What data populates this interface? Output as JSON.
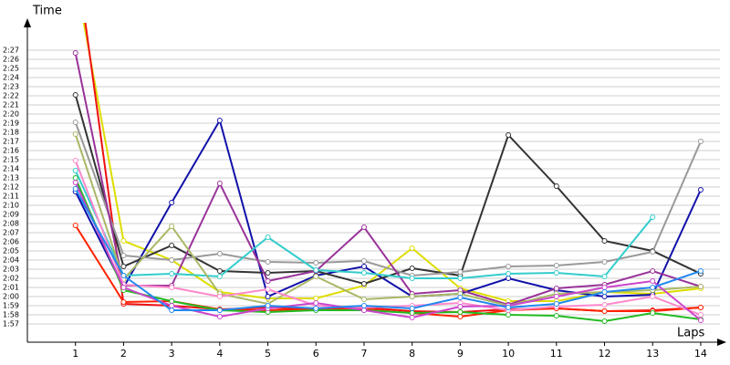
{
  "chart_data": {
    "type": "line",
    "ylabel": "Time",
    "xlabel": "Laps",
    "x": [
      1,
      2,
      3,
      4,
      5,
      6,
      7,
      8,
      9,
      10,
      11,
      12,
      13,
      14
    ],
    "xlim": [
      0,
      14.4
    ],
    "xticks": [
      1,
      2,
      3,
      4,
      5,
      6,
      7,
      8,
      9,
      10,
      11,
      12,
      13,
      14
    ],
    "ylim": [
      115,
      150
    ],
    "yticks": [
      {
        "value": 117,
        "label": "1:57"
      },
      {
        "value": 118,
        "label": "1:58"
      },
      {
        "value": 119,
        "label": "1:59"
      },
      {
        "value": 120,
        "label": "2:00"
      },
      {
        "value": 121,
        "label": "2:01"
      },
      {
        "value": 122,
        "label": "2:02"
      },
      {
        "value": 123,
        "label": "2:03"
      },
      {
        "value": 124,
        "label": "2:04"
      },
      {
        "value": 125,
        "label": "2:05"
      },
      {
        "value": 126,
        "label": "2:06"
      },
      {
        "value": 127,
        "label": "2:07"
      },
      {
        "value": 128,
        "label": "2:08"
      },
      {
        "value": 129,
        "label": "2:09"
      },
      {
        "value": 130,
        "label": "2:10"
      },
      {
        "value": 131,
        "label": "2:11"
      },
      {
        "value": 132,
        "label": "2:12"
      },
      {
        "value": 133,
        "label": "2:13"
      },
      {
        "value": 134,
        "label": "2:14"
      },
      {
        "value": 135,
        "label": "2:15"
      },
      {
        "value": 136,
        "label": "2:16"
      },
      {
        "value": 137,
        "label": "2:17"
      },
      {
        "value": 138,
        "label": "2:18"
      },
      {
        "value": 139,
        "label": "2:19"
      },
      {
        "value": 140,
        "label": "2:20"
      },
      {
        "value": 141,
        "label": "2:21"
      },
      {
        "value": 142,
        "label": "2:22"
      },
      {
        "value": 143,
        "label": "2:23"
      },
      {
        "value": 144,
        "label": "2:24"
      },
      {
        "value": 145,
        "label": "2:25"
      },
      {
        "value": 146,
        "label": "2:26"
      },
      {
        "value": 147,
        "label": "2:27"
      }
    ],
    "grid": true,
    "series": [
      {
        "color": "#dddd00",
        "values": [
          155,
          126.1,
          124,
          120.5,
          119.8,
          119.8,
          121.2,
          125.3,
          120.9,
          119.5,
          119.5,
          120.5,
          120.3,
          120.9
        ]
      },
      {
        "color": "#ee1111",
        "values": [
          158,
          119.2,
          119.0,
          118.6,
          118.8,
          118.6,
          118.8,
          118.4,
          118.3,
          118.6,
          118.7,
          118.4,
          118.5,
          118.8
        ]
      },
      {
        "color": "#ff2200",
        "values": [
          127.8,
          119.4,
          119.5,
          118.6,
          118.5,
          118.6,
          118.6,
          118.2,
          117.8,
          118.5,
          118.7,
          118.4,
          118.4,
          118.8
        ]
      },
      {
        "color": "#1111aa",
        "values": [
          131.5,
          121,
          130.3,
          139.3,
          120,
          122.3,
          123.3,
          120,
          120.3,
          122,
          120.7,
          120,
          120.2,
          131.7
        ]
      },
      {
        "color": "#333333",
        "values": [
          142.1,
          123.3,
          125.6,
          122.8,
          122.6,
          122.8,
          121.4,
          123.1,
          122.3,
          137.7,
          132.1,
          126.1,
          125,
          122.5
        ]
      },
      {
        "color": "#999999",
        "values": [
          139.1,
          124.5,
          124,
          124.7,
          123.8,
          123.7,
          123.9,
          122.3,
          122.7,
          123.3,
          123.4,
          123.8,
          124.9,
          137
        ]
      },
      {
        "color": "#993399",
        "values": [
          146.7,
          121.2,
          121.2,
          132.4,
          121.7,
          122.8,
          127.6,
          120.3,
          120.7,
          119.1,
          120.9,
          121.3,
          122.8,
          121.1
        ]
      },
      {
        "color": "#33cccc",
        "values": [
          133.8,
          122.3,
          122.5,
          122.2,
          126.5,
          122.9,
          122.6,
          122,
          122,
          122.5,
          122.6,
          122.2,
          128.7,
          null
        ]
      },
      {
        "color": "#aab866",
        "values": [
          137.8,
          121.9,
          127.7,
          120.3,
          119.2,
          122.2,
          119.7,
          120,
          120.3,
          119,
          120.3,
          120.5,
          120.7,
          121.1
        ]
      },
      {
        "color": "#22bb22",
        "values": [
          133,
          120.7,
          119.5,
          118.5,
          118.3,
          118.5,
          118.5,
          118.2,
          118.3,
          118,
          117.9,
          117.3,
          118.2,
          117.5
        ]
      },
      {
        "color": "#ff88cc",
        "values": [
          134.9,
          121.3,
          121,
          120,
          120.8,
          119,
          118.8,
          119,
          119.3,
          118.5,
          118.9,
          119.1,
          120,
          118
        ]
      },
      {
        "color": "#cc44cc",
        "values": [
          132.5,
          121,
          119,
          117.8,
          118.7,
          119.3,
          118.5,
          117.7,
          118.9,
          119,
          120,
          121,
          121.7,
          117.4
        ]
      },
      {
        "color": "#2288ee",
        "values": [
          131.8,
          122.3,
          118.5,
          118.5,
          119,
          118.7,
          119,
          118.7,
          119.9,
          118.8,
          119.2,
          120.5,
          121,
          122.8
        ]
      }
    ]
  }
}
